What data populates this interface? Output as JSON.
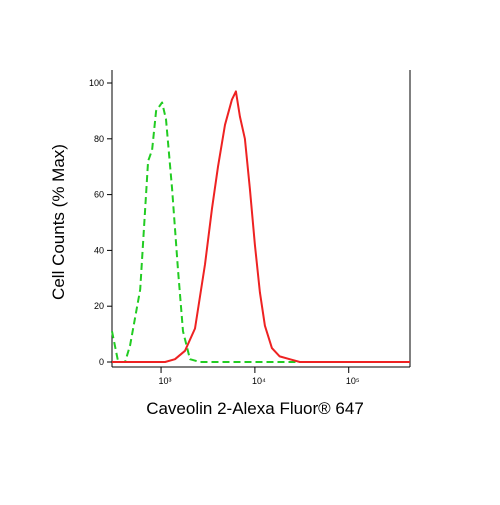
{
  "chart_data": {
    "type": "line",
    "x_label": "Caveolin 2-Alexa Fluor® 647",
    "y_label": "Cell Counts (% Max)",
    "x_scale": "log",
    "xlim": [
      300,
      450000
    ],
    "ylim": [
      0,
      100
    ],
    "xticks": [
      {
        "value": 1000,
        "label": "10³"
      },
      {
        "value": 10000,
        "label": "10⁴"
      },
      {
        "value": 100000,
        "label": "10⁵"
      }
    ],
    "yticks": [
      0,
      20,
      40,
      60,
      80,
      100
    ],
    "series": [
      {
        "color": "#22cc22",
        "dash": true,
        "x": [
          300,
          349,
          414,
          468,
          599,
          728,
          802,
          885,
          1025,
          1130,
          1310,
          1516,
          1714,
          2036,
          2600,
          450000
        ],
        "values": [
          11,
          0,
          0,
          6,
          26,
          72,
          76,
          90,
          93,
          87,
          62,
          33,
          11,
          1,
          0,
          0
        ]
      },
      {
        "color": "#ee2222",
        "dash": false,
        "x": [
          300,
          1104,
          1408,
          1800,
          2300,
          2940,
          3490,
          4040,
          4800,
          5690,
          6280,
          6920,
          7830,
          8850,
          10000,
          11300,
          12800,
          15200,
          18400,
          23500,
          30100,
          450000
        ],
        "values": [
          0,
          0,
          1,
          4,
          12,
          35,
          55,
          70,
          85,
          94,
          97,
          88,
          80,
          62,
          42,
          25,
          13,
          5,
          2,
          1,
          0,
          0
        ]
      }
    ]
  }
}
